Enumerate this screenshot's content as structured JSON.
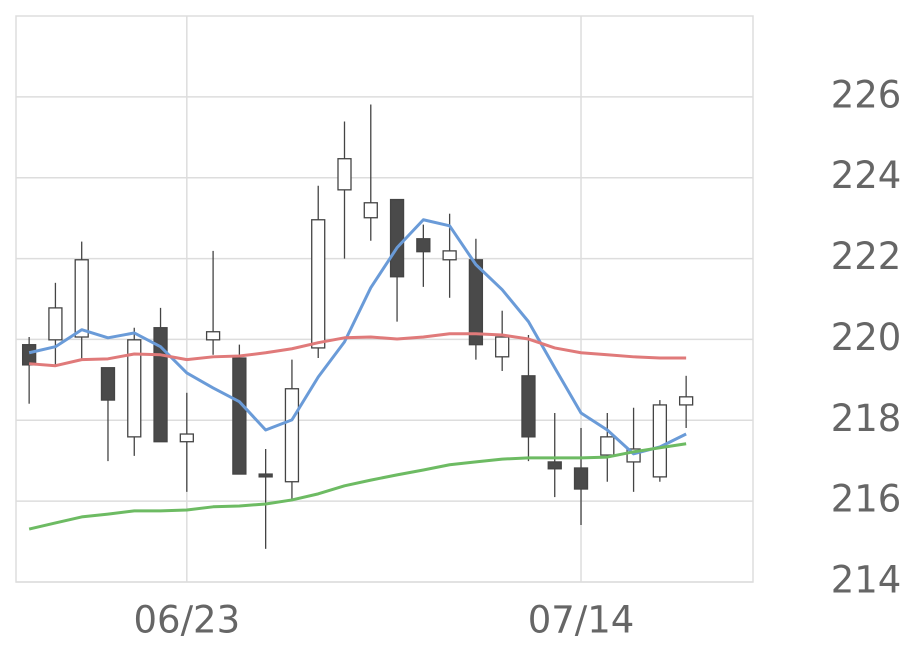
{
  "chart_data": {
    "type": "candlestick",
    "categories": [
      null,
      null,
      null,
      null,
      null,
      null,
      "06/23",
      null,
      null,
      null,
      null,
      null,
      null,
      null,
      null,
      null,
      null,
      null,
      null,
      null,
      null,
      "07/14",
      null,
      null,
      null,
      null
    ],
    "open": [
      219.87,
      219.99,
      220.06,
      219.3,
      217.59,
      220.29,
      217.47,
      219.99,
      219.54,
      216.67,
      216.48,
      219.79,
      223.7,
      223.01,
      223.46,
      222.49,
      221.97,
      221.97,
      219.57,
      219.1,
      216.97,
      216.82,
      217.14,
      216.97,
      216.6,
      218.38
    ],
    "high": [
      220.06,
      221.4,
      222.42,
      219.3,
      220.29,
      220.78,
      218.68,
      222.19,
      219.87,
      217.29,
      219.5,
      223.8,
      225.39,
      225.81,
      223.46,
      222.84,
      223.11,
      222.49,
      220.71,
      220.11,
      218.18,
      217.81,
      218.18,
      218.31,
      218.5,
      219.1
    ],
    "low": [
      218.41,
      219.37,
      219.5,
      216.99,
      217.12,
      217.47,
      216.23,
      219.62,
      216.67,
      214.82,
      216.03,
      219.54,
      222.0,
      222.44,
      220.44,
      221.3,
      221.03,
      219.5,
      219.22,
      216.99,
      216.1,
      215.41,
      216.48,
      216.23,
      216.48,
      217.81
    ],
    "close": [
      219.37,
      220.78,
      221.97,
      218.5,
      219.99,
      217.47,
      217.66,
      220.19,
      216.67,
      216.6,
      218.78,
      222.96,
      224.47,
      223.38,
      221.55,
      222.17,
      222.19,
      219.87,
      220.06,
      217.59,
      216.8,
      216.3,
      217.59,
      217.29,
      218.38,
      218.58
    ],
    "up_color": "#ffffff",
    "down_color": "#4a4a4a",
    "lines": [
      {
        "color": "#6a9bd8",
        "values": [
          219.67,
          219.82,
          220.24,
          220.04,
          220.16,
          219.82,
          219.17,
          218.8,
          218.46,
          217.76,
          218.01,
          219.07,
          219.94,
          221.28,
          222.27,
          222.96,
          222.81,
          221.85,
          221.23,
          220.44,
          219.3,
          218.18,
          217.76,
          217.17,
          217.34,
          217.66
        ]
      },
      {
        "color": "#e07a7a",
        "values": [
          219.4,
          219.35,
          219.5,
          219.52,
          219.64,
          219.62,
          219.5,
          219.57,
          219.59,
          219.67,
          219.77,
          219.92,
          220.04,
          220.06,
          220.01,
          220.06,
          220.14,
          220.14,
          220.11,
          220.01,
          219.79,
          219.67,
          219.62,
          219.57,
          219.54,
          219.54
        ]
      },
      {
        "color": "#6dbb63",
        "values": [
          215.31,
          215.46,
          215.61,
          215.68,
          215.76,
          215.76,
          215.78,
          215.86,
          215.88,
          215.93,
          216.03,
          216.18,
          216.38,
          216.52,
          216.65,
          216.77,
          216.9,
          216.97,
          217.04,
          217.07,
          217.07,
          217.07,
          217.09,
          217.22,
          217.32,
          217.42
        ]
      }
    ],
    "ylim": [
      214,
      228
    ],
    "yticks": [
      214,
      216,
      218,
      220,
      222,
      224,
      226
    ],
    "grid": true
  }
}
